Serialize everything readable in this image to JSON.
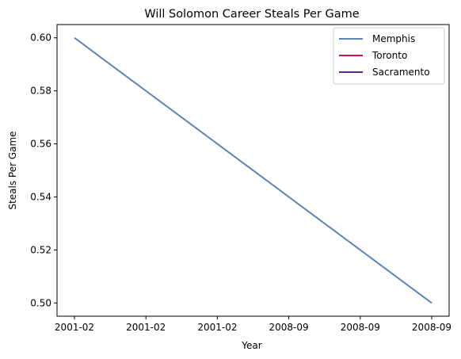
{
  "chart_data": {
    "type": "line",
    "title": "Will Solomon Career Steals Per Game",
    "xlabel": "Year",
    "ylabel": "Steals Per Game",
    "x_tick_labels": [
      "2001-02",
      "2001-02",
      "2001-02",
      "2008-09",
      "2008-09",
      "2008-09"
    ],
    "ylim": [
      0.495,
      0.605
    ],
    "yticks": [
      0.5,
      0.52,
      0.54,
      0.56,
      0.58,
      0.6
    ],
    "ytick_labels": [
      "0.50",
      "0.52",
      "0.54",
      "0.56",
      "0.58",
      "0.60"
    ],
    "grid": false,
    "legend_position": "top-right",
    "series": [
      {
        "name": "Memphis",
        "color": "#5b84b8",
        "points": [
          {
            "x": "2001-02",
            "y": 0.6
          },
          {
            "x": "2008-09",
            "y": 0.5
          }
        ]
      },
      {
        "name": "Toronto",
        "color": "#c8174f",
        "points": []
      },
      {
        "name": "Sacramento",
        "color": "#5c2a84",
        "points": []
      }
    ]
  }
}
